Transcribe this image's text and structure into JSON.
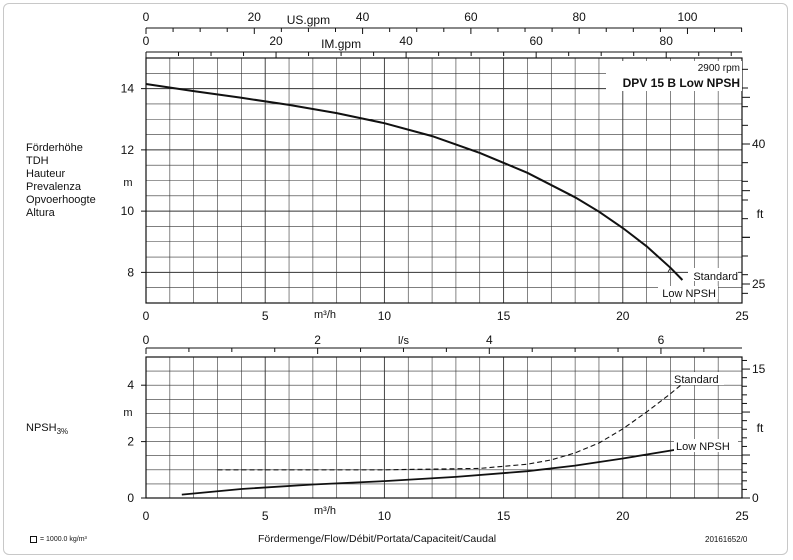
{
  "labels": {
    "y_labels": [
      "Förderhöhe",
      "TDH",
      "Hauteur",
      "Prevalenza",
      "Opvoerhoogte",
      "Altura"
    ],
    "npsh_main": "NPSH",
    "npsh_sub": "3%",
    "density_note": "= 1000.0 kg/m³",
    "flow_label": "Fördermenge/Flow/Débit/Portata/Capaciteit/Caudal",
    "doc_code": "20161652/0"
  },
  "chart_data": [
    {
      "type": "line",
      "title": "DPV 15 B Low NPSH",
      "subtitle": "2900 rpm",
      "xlabel": "m³/h",
      "ylabel": "m",
      "secondary_ylabel": "ft",
      "xlim": [
        0,
        25
      ],
      "ylim": [
        7,
        15
      ],
      "x_ticks": [
        0,
        5,
        10,
        15,
        20,
        25
      ],
      "y_ticks": [
        8,
        10,
        12,
        14
      ],
      "ft_ticks": [
        25,
        40
      ],
      "top_axes": [
        {
          "label": "US.gpm",
          "ticks": [
            0,
            20,
            40,
            60,
            80,
            100
          ]
        },
        {
          "label": "IM.gpm",
          "ticks": [
            0,
            20,
            40,
            60,
            80
          ]
        }
      ],
      "grid": true,
      "series": [
        {
          "name": "Standard",
          "x": [
            0,
            2,
            4,
            6,
            8,
            10,
            12,
            14,
            16,
            18,
            19,
            20,
            21,
            22,
            22.5
          ],
          "y": [
            14.15,
            13.92,
            13.7,
            13.47,
            13.2,
            12.87,
            12.45,
            11.9,
            11.25,
            10.45,
            9.98,
            9.45,
            8.85,
            8.15,
            7.75
          ]
        },
        {
          "name": "Low NPSH",
          "x": [
            0,
            2,
            4,
            6,
            8,
            10,
            12,
            14,
            16,
            18,
            19,
            20,
            21,
            22,
            22.5
          ],
          "y": [
            14.15,
            13.92,
            13.7,
            13.47,
            13.2,
            12.87,
            12.45,
            11.9,
            11.25,
            10.45,
            9.98,
            9.45,
            8.85,
            8.15,
            7.75
          ]
        }
      ]
    },
    {
      "type": "line",
      "xlabel": "m³/h",
      "ylabel": "m",
      "secondary_ylabel": "ft",
      "xlim": [
        0,
        25
      ],
      "ylim": [
        0,
        5
      ],
      "x_ticks": [
        0,
        5,
        10,
        15,
        20,
        25
      ],
      "y_ticks": [
        0,
        2,
        4
      ],
      "ft_ticks": [
        0,
        15
      ],
      "top_axes": [
        {
          "label": "l/s",
          "ticks": [
            0,
            2,
            4,
            6
          ]
        }
      ],
      "grid": true,
      "series": [
        {
          "name": "Standard",
          "style": "dashed",
          "x": [
            3,
            6,
            10,
            14,
            16,
            17,
            18,
            19,
            20,
            21,
            22,
            22.5
          ],
          "y": [
            1.0,
            1.0,
            1.0,
            1.05,
            1.2,
            1.35,
            1.6,
            1.95,
            2.45,
            3.05,
            3.7,
            4.05
          ]
        },
        {
          "name": "Low NPSH",
          "style": "solid",
          "x": [
            1.5,
            4,
            7,
            10,
            13,
            16,
            18,
            20,
            22.5
          ],
          "y": [
            0.12,
            0.32,
            0.48,
            0.6,
            0.75,
            0.95,
            1.15,
            1.4,
            1.75
          ]
        }
      ]
    }
  ]
}
